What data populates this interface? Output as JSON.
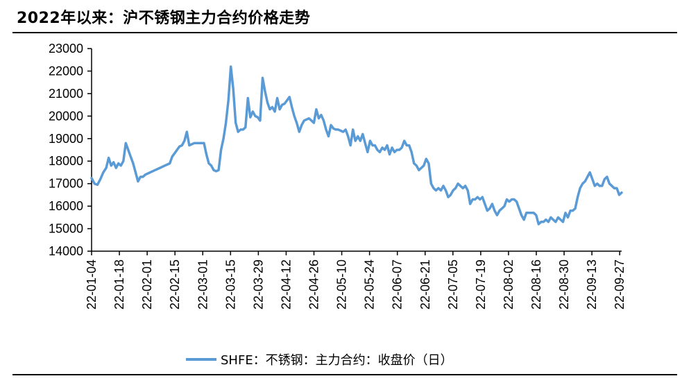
{
  "header": {
    "title": "2022年以来：沪不锈钢主力合约价格走势"
  },
  "legend": {
    "label": "SHFE：不锈钢：主力合约：收盘价（日）"
  },
  "colors": {
    "series": "#5b9bd5",
    "axis": "#000000"
  },
  "chart_data": {
    "type": "line",
    "title": "2022年以来：沪不锈钢主力合约价格走势",
    "xlabel": "",
    "ylabel": "",
    "ylim": [
      14000,
      23000
    ],
    "yticks": [
      "14000",
      "15000",
      "16000",
      "17000",
      "18000",
      "19000",
      "20000",
      "21000",
      "22000",
      "23000"
    ],
    "xticks": [
      "22-01-04",
      "22-01-18",
      "22-02-01",
      "22-02-15",
      "22-03-01",
      "22-03-15",
      "22-03-29",
      "22-04-12",
      "22-04-26",
      "22-05-10",
      "22-05-24",
      "22-06-07",
      "22-06-21",
      "22-07-05",
      "22-07-19",
      "22-08-02",
      "22-08-16",
      "22-08-30",
      "22-09-13",
      "22-09-27"
    ],
    "grid": false,
    "legend_position": "bottom",
    "series": [
      {
        "name": "SHFE：不锈钢：主力合约：收盘价（日）",
        "points": [
          [
            0,
            17250
          ],
          [
            0.6,
            17000
          ],
          [
            1.2,
            16950
          ],
          [
            1.8,
            17200
          ],
          [
            2.4,
            17500
          ],
          [
            3,
            17700
          ],
          [
            3.5,
            18150
          ],
          [
            4,
            17800
          ],
          [
            4.5,
            17950
          ],
          [
            5,
            17700
          ],
          [
            5.5,
            17900
          ],
          [
            6,
            17800
          ],
          [
            6.5,
            18000
          ],
          [
            7,
            18800
          ],
          [
            7.5,
            18500
          ],
          [
            8,
            18200
          ],
          [
            8.5,
            17900
          ],
          [
            9,
            17500
          ],
          [
            9.5,
            17100
          ],
          [
            10,
            17300
          ],
          [
            10.5,
            17300
          ],
          [
            11,
            17400
          ],
          [
            12,
            17500
          ],
          [
            13,
            17600
          ],
          [
            14,
            17700
          ],
          [
            15,
            17800
          ],
          [
            16,
            17900
          ],
          [
            16.5,
            18200
          ],
          [
            17,
            18350
          ],
          [
            17.5,
            18500
          ],
          [
            18,
            18650
          ],
          [
            18.5,
            18700
          ],
          [
            19,
            18900
          ],
          [
            19.5,
            19300
          ],
          [
            20,
            18700
          ],
          [
            20.5,
            18750
          ],
          [
            21,
            18800
          ],
          [
            22,
            18800
          ],
          [
            23,
            18800
          ],
          [
            23.5,
            18300
          ],
          [
            24,
            17900
          ],
          [
            24.5,
            17800
          ],
          [
            25,
            17600
          ],
          [
            25.5,
            17550
          ],
          [
            26,
            17600
          ],
          [
            26.5,
            18500
          ],
          [
            27,
            19000
          ],
          [
            27.5,
            19700
          ],
          [
            28,
            20700
          ],
          [
            28.5,
            22200
          ],
          [
            29,
            21200
          ],
          [
            29.5,
            19700
          ],
          [
            30,
            19300
          ],
          [
            30.5,
            19400
          ],
          [
            31,
            19400
          ],
          [
            31.5,
            19500
          ],
          [
            32,
            20800
          ],
          [
            32.5,
            19950
          ],
          [
            33,
            20200
          ],
          [
            33.5,
            20000
          ],
          [
            34,
            19950
          ],
          [
            34.5,
            19800
          ],
          [
            35,
            21700
          ],
          [
            35.5,
            21100
          ],
          [
            36,
            20600
          ],
          [
            36.5,
            20300
          ],
          [
            37,
            20400
          ],
          [
            37.5,
            20200
          ],
          [
            38,
            20800
          ],
          [
            38.5,
            20300
          ],
          [
            39,
            20500
          ],
          [
            39.5,
            20550
          ],
          [
            40,
            20700
          ],
          [
            40.5,
            20850
          ],
          [
            41,
            20400
          ],
          [
            41.5,
            20000
          ],
          [
            42,
            19700
          ],
          [
            42.5,
            19300
          ],
          [
            43,
            19600
          ],
          [
            43.5,
            19800
          ],
          [
            44,
            19850
          ],
          [
            44.5,
            19900
          ],
          [
            45,
            19800
          ],
          [
            45.5,
            19700
          ],
          [
            46,
            20300
          ],
          [
            46.5,
            19900
          ],
          [
            47,
            20050
          ],
          [
            47.5,
            19800
          ],
          [
            48,
            19400
          ],
          [
            48.5,
            19100
          ],
          [
            49,
            19600
          ],
          [
            49.5,
            19450
          ],
          [
            50,
            19400
          ],
          [
            50.5,
            19400
          ],
          [
            51,
            19350
          ],
          [
            51.5,
            19300
          ],
          [
            52,
            19400
          ],
          [
            52.5,
            19100
          ],
          [
            53,
            18700
          ],
          [
            53.5,
            19400
          ],
          [
            54,
            18900
          ],
          [
            54.5,
            19100
          ],
          [
            55,
            18900
          ],
          [
            55.5,
            19200
          ],
          [
            56,
            18800
          ],
          [
            56.5,
            18400
          ],
          [
            57,
            18900
          ],
          [
            57.5,
            18700
          ],
          [
            58,
            18700
          ],
          [
            58.5,
            18500
          ],
          [
            59,
            18400
          ],
          [
            59.5,
            18600
          ],
          [
            60,
            18500
          ],
          [
            60.5,
            18700
          ],
          [
            61,
            18300
          ],
          [
            61.5,
            18600
          ],
          [
            62,
            18400
          ],
          [
            62.5,
            18500
          ],
          [
            63,
            18500
          ],
          [
            63.5,
            18600
          ],
          [
            64,
            18900
          ],
          [
            64.5,
            18700
          ],
          [
            65,
            18700
          ],
          [
            65.5,
            18400
          ],
          [
            66,
            17900
          ],
          [
            66.5,
            17800
          ],
          [
            67,
            17600
          ],
          [
            67.5,
            17700
          ],
          [
            68,
            17800
          ],
          [
            68.5,
            18100
          ],
          [
            69,
            17900
          ],
          [
            69.5,
            17000
          ],
          [
            70,
            16800
          ],
          [
            70.5,
            16700
          ],
          [
            71,
            16800
          ],
          [
            71.5,
            16700
          ],
          [
            72,
            16900
          ],
          [
            72.5,
            16700
          ],
          [
            73,
            16400
          ],
          [
            73.5,
            16500
          ],
          [
            74,
            16700
          ],
          [
            74.5,
            16800
          ],
          [
            75,
            17000
          ],
          [
            75.5,
            16900
          ],
          [
            76,
            16800
          ],
          [
            76.5,
            16900
          ],
          [
            77,
            16700
          ],
          [
            77.5,
            16100
          ],
          [
            78,
            16300
          ],
          [
            78.5,
            16300
          ],
          [
            79,
            16400
          ],
          [
            79.5,
            16300
          ],
          [
            80,
            16400
          ],
          [
            80.5,
            16100
          ],
          [
            81,
            15800
          ],
          [
            81.5,
            15900
          ],
          [
            82,
            16100
          ],
          [
            82.5,
            15800
          ],
          [
            83,
            15600
          ],
          [
            83.5,
            15800
          ],
          [
            84,
            15900
          ],
          [
            84.5,
            16000
          ],
          [
            85,
            16300
          ],
          [
            85.5,
            16200
          ],
          [
            86,
            16300
          ],
          [
            86.5,
            16300
          ],
          [
            87,
            16200
          ],
          [
            87.5,
            15900
          ],
          [
            88,
            15600
          ],
          [
            88.5,
            15400
          ],
          [
            89,
            15700
          ],
          [
            89.5,
            15700
          ],
          [
            90,
            15700
          ],
          [
            90.5,
            15700
          ],
          [
            91,
            15600
          ],
          [
            91.5,
            15200
          ],
          [
            92,
            15300
          ],
          [
            92.5,
            15300
          ],
          [
            93,
            15400
          ],
          [
            93.5,
            15300
          ],
          [
            94,
            15500
          ],
          [
            94.5,
            15400
          ],
          [
            95,
            15300
          ],
          [
            95.5,
            15500
          ],
          [
            96,
            15400
          ],
          [
            96.5,
            15300
          ],
          [
            97,
            15700
          ],
          [
            97.5,
            15500
          ],
          [
            98,
            15800
          ],
          [
            98.5,
            15800
          ],
          [
            99,
            15900
          ],
          [
            99.5,
            16400
          ],
          [
            100,
            16800
          ],
          [
            100.5,
            17000
          ],
          [
            101,
            17100
          ],
          [
            101.5,
            17300
          ],
          [
            102,
            17500
          ],
          [
            102.5,
            17200
          ],
          [
            103,
            16900
          ],
          [
            103.5,
            17000
          ],
          [
            104,
            16900
          ],
          [
            104.5,
            16900
          ],
          [
            105,
            17200
          ],
          [
            105.5,
            17300
          ],
          [
            106,
            17000
          ],
          [
            106.5,
            16900
          ],
          [
            107,
            16800
          ],
          [
            107.5,
            16800
          ],
          [
            108,
            16500
          ],
          [
            108.5,
            16600
          ]
        ]
      }
    ]
  }
}
